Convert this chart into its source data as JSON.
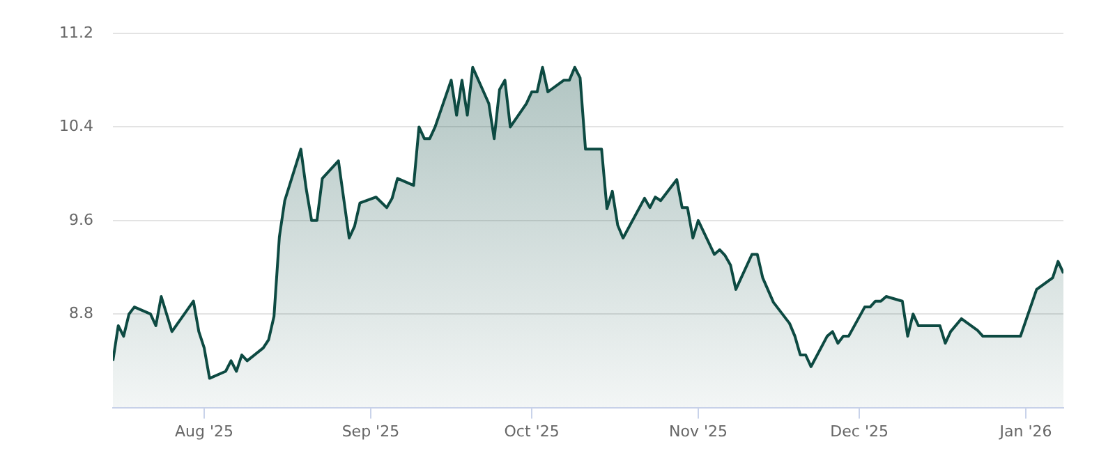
{
  "chart_data": {
    "type": "area",
    "color": "#0d4a42",
    "x": [
      "2025-07-15",
      "2025-07-16",
      "2025-07-17",
      "2025-07-18",
      "2025-07-19",
      "2025-07-22",
      "2025-07-23",
      "2025-07-24",
      "2025-07-26",
      "2025-07-30",
      "2025-07-31",
      "2025-08-01",
      "2025-08-02",
      "2025-08-05",
      "2025-08-06",
      "2025-08-07",
      "2025-08-08",
      "2025-08-09",
      "2025-08-12",
      "2025-08-13",
      "2025-08-14",
      "2025-08-15",
      "2025-08-16",
      "2025-08-19",
      "2025-08-20",
      "2025-08-21",
      "2025-08-22",
      "2025-08-23",
      "2025-08-26",
      "2025-08-28",
      "2025-08-29",
      "2025-08-30",
      "2025-09-02",
      "2025-09-04",
      "2025-09-05",
      "2025-09-06",
      "2025-09-09",
      "2025-09-10",
      "2025-09-11",
      "2025-09-12",
      "2025-09-13",
      "2025-09-16",
      "2025-09-17",
      "2025-09-18",
      "2025-09-19",
      "2025-09-20",
      "2025-09-23",
      "2025-09-24",
      "2025-09-25",
      "2025-09-26",
      "2025-09-27",
      "2025-09-30",
      "2025-10-01",
      "2025-10-02",
      "2025-10-03",
      "2025-10-04",
      "2025-10-07",
      "2025-10-08",
      "2025-10-09",
      "2025-10-10",
      "2025-10-11",
      "2025-10-14",
      "2025-10-15",
      "2025-10-16",
      "2025-10-17",
      "2025-10-18",
      "2025-10-22",
      "2025-10-23",
      "2025-10-24",
      "2025-10-25",
      "2025-10-28",
      "2025-10-29",
      "2025-10-30",
      "2025-10-31",
      "2025-11-01",
      "2025-11-04",
      "2025-11-05",
      "2025-11-06",
      "2025-11-07",
      "2025-11-08",
      "2025-11-11",
      "2025-11-12",
      "2025-11-13",
      "2025-11-15",
      "2025-11-18",
      "2025-11-19",
      "2025-11-20",
      "2025-11-21",
      "2025-11-22",
      "2025-11-25",
      "2025-11-26",
      "2025-11-27",
      "2025-11-28",
      "2025-11-29",
      "2025-12-02",
      "2025-12-03",
      "2025-12-04",
      "2025-12-05",
      "2025-12-06",
      "2025-12-09",
      "2025-12-10",
      "2025-12-11",
      "2025-12-12",
      "2025-12-16",
      "2025-12-17",
      "2025-12-18",
      "2025-12-20",
      "2025-12-23",
      "2025-12-24",
      "2025-12-31",
      "2026-01-03",
      "2026-01-06",
      "2026-01-07",
      "2026-01-08"
    ],
    "values": [
      8.4,
      8.7,
      8.61,
      8.8,
      8.86,
      8.8,
      8.7,
      8.95,
      8.65,
      8.91,
      8.65,
      8.51,
      8.25,
      8.31,
      8.4,
      8.31,
      8.45,
      8.4,
      8.51,
      8.58,
      8.78,
      9.46,
      9.77,
      10.21,
      9.87,
      9.6,
      9.6,
      9.96,
      10.11,
      9.45,
      9.55,
      9.75,
      9.8,
      9.71,
      9.79,
      9.96,
      9.9,
      10.4,
      10.3,
      10.3,
      10.4,
      10.8,
      10.5,
      10.8,
      10.5,
      10.91,
      10.6,
      10.3,
      10.72,
      10.8,
      10.4,
      10.6,
      10.7,
      10.7,
      10.91,
      10.7,
      10.8,
      10.8,
      10.91,
      10.82,
      10.21,
      10.21,
      9.7,
      9.85,
      9.56,
      9.45,
      9.79,
      9.71,
      9.8,
      9.77,
      9.95,
      9.71,
      9.71,
      9.45,
      9.6,
      9.31,
      9.35,
      9.3,
      9.22,
      9.01,
      9.31,
      9.31,
      9.11,
      8.9,
      8.72,
      8.61,
      8.45,
      8.45,
      8.35,
      8.61,
      8.65,
      8.55,
      8.61,
      8.61,
      8.86,
      8.86,
      8.91,
      8.91,
      8.95,
      8.91,
      8.61,
      8.8,
      8.7,
      8.7,
      8.55,
      8.65,
      8.76,
      8.66,
      8.61,
      8.61,
      9.01,
      9.11,
      9.25,
      9.15
    ],
    "xlim": [
      "2025-07-15",
      "2026-01-08"
    ],
    "xticks": [
      {
        "value": "2025-08-01",
        "label": "Aug '25"
      },
      {
        "value": "2025-09-01",
        "label": "Sep '25"
      },
      {
        "value": "2025-10-01",
        "label": "Oct '25"
      },
      {
        "value": "2025-11-01",
        "label": "Nov '25"
      },
      {
        "value": "2025-12-01",
        "label": "Dec '25"
      },
      {
        "value": "2026-01-01",
        "label": "Jan '26"
      }
    ],
    "ylim": [
      8.0,
      11.2
    ],
    "yticks": [
      8.8,
      9.6,
      10.4,
      11.2
    ],
    "grid": "y",
    "legend": false,
    "marker": "none",
    "line_style": "solid"
  }
}
